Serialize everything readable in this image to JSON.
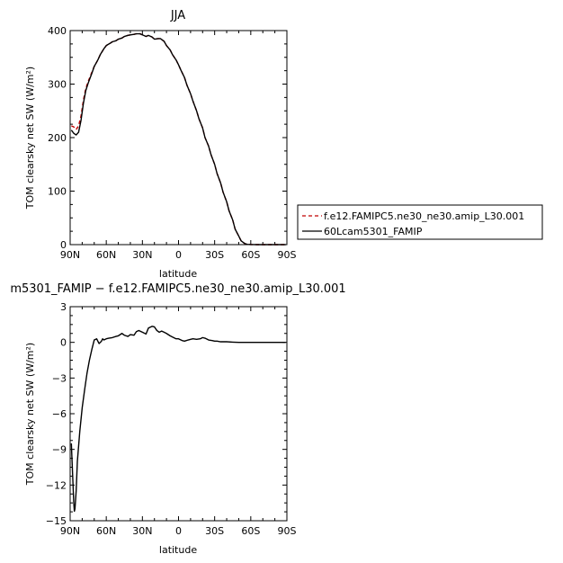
{
  "chart_data": [
    {
      "type": "line",
      "title": "JJA",
      "xlabel": "latitude",
      "ylabel": "TOM clearsky net SW (W/m²)",
      "xlim": [
        90,
        -90
      ],
      "ylim": [
        0,
        400
      ],
      "x_ticks": [
        90,
        60,
        30,
        0,
        -30,
        -60,
        -90
      ],
      "x_tick_labels": [
        "90N",
        "60N",
        "30N",
        "0",
        "30S",
        "60S",
        "90S"
      ],
      "y_ticks": [
        0,
        100,
        200,
        300,
        400
      ],
      "y_tick_labels": [
        "0",
        "100",
        "200",
        "300",
        "400"
      ],
      "legend": "outside-right",
      "series": [
        {
          "name": "f.e12.FAMIPC5.ne30_ne30.amip_L30.001",
          "color": "#c00000",
          "dash": "dashed",
          "x": [
            89,
            87,
            85,
            83,
            81,
            79,
            77,
            75,
            72,
            70,
            67,
            65,
            62,
            60,
            57,
            55,
            52,
            50,
            47,
            45,
            42,
            40,
            37,
            35,
            32,
            30,
            27,
            25,
            22,
            20,
            17,
            15,
            12,
            10,
            7,
            5,
            2,
            0,
            -2,
            -5,
            -7,
            -10,
            -12,
            -15,
            -17,
            -20,
            -22,
            -25,
            -27,
            -30,
            -32,
            -35,
            -37,
            -40,
            -42,
            -45,
            -47,
            -50,
            -52,
            -55,
            -57,
            -60,
            -62,
            -65,
            -67,
            -70,
            -72,
            -75,
            -77,
            -80,
            -82,
            -85,
            -87,
            -89
          ],
          "y": [
            222,
            220,
            215,
            222,
            240,
            270,
            292,
            305,
            322,
            333,
            345,
            355,
            366,
            372,
            376,
            379,
            381,
            384,
            386,
            389,
            391,
            392,
            393,
            394,
            394,
            392,
            389,
            391,
            388,
            384,
            385,
            385,
            380,
            372,
            364,
            355,
            345,
            336,
            326,
            312,
            298,
            282,
            268,
            250,
            235,
            218,
            200,
            184,
            168,
            150,
            133,
            115,
            98,
            80,
            63,
            46,
            29,
            16,
            7,
            2,
            0.5,
            0.2,
            0.1,
            0,
            0,
            0,
            0,
            0,
            0,
            0,
            0,
            0,
            0,
            0
          ]
        },
        {
          "name": "60Lcam5301_FAMIP",
          "color": "#000000",
          "dash": "solid",
          "x": [
            89,
            87,
            85,
            83,
            81,
            79,
            77,
            75,
            72,
            70,
            67,
            65,
            62,
            60,
            57,
            55,
            52,
            50,
            47,
            45,
            42,
            40,
            37,
            35,
            32,
            30,
            27,
            25,
            22,
            20,
            17,
            15,
            12,
            10,
            7,
            5,
            2,
            0,
            -2,
            -5,
            -7,
            -10,
            -12,
            -15,
            -17,
            -20,
            -22,
            -25,
            -27,
            -30,
            -32,
            -35,
            -37,
            -40,
            -42,
            -45,
            -47,
            -50,
            -52,
            -55,
            -57,
            -60,
            -62,
            -65,
            -67,
            -70,
            -72,
            -75,
            -77,
            -80,
            -82,
            -85,
            -87,
            -89
          ],
          "y": [
            214,
            208,
            205,
            210,
            232,
            264,
            288,
            302,
            320,
            333,
            345,
            355,
            366,
            372,
            376,
            379,
            381,
            384,
            386,
            389,
            391,
            392,
            393,
            394,
            394,
            392,
            389,
            391,
            388,
            384,
            385,
            385,
            380,
            372,
            364,
            355,
            345,
            336,
            326,
            312,
            298,
            282,
            268,
            250,
            235,
            218,
            200,
            184,
            168,
            150,
            133,
            115,
            98,
            80,
            63,
            46,
            29,
            16,
            7,
            2,
            0.5,
            0.2,
            0.1,
            0,
            0,
            0,
            0,
            0,
            0,
            0,
            0,
            0,
            0,
            0
          ]
        }
      ]
    },
    {
      "type": "line",
      "title": "m5301_FAMIP − f.e12.FAMIPC5.ne30_ne30.amip_L30.001",
      "xlabel": "latitude",
      "ylabel": "TOM clearsky net SW (W/m²)",
      "xlim": [
        90,
        -90
      ],
      "ylim": [
        -15,
        3
      ],
      "x_ticks": [
        90,
        60,
        30,
        0,
        -30,
        -60,
        -90
      ],
      "x_tick_labels": [
        "90N",
        "60N",
        "30N",
        "0",
        "30S",
        "60S",
        "90S"
      ],
      "y_ticks": [
        3,
        0,
        -3,
        -6,
        -9,
        -12,
        -15
      ],
      "y_tick_labels": [
        "3",
        "0",
        "−3",
        "−6",
        "−9",
        "−12",
        "−15"
      ],
      "series": [
        {
          "color": "#000000",
          "dash": "solid",
          "x": [
            89,
            88,
            87,
            86.5,
            86,
            85,
            84,
            82,
            80,
            78,
            76,
            74,
            72,
            70,
            68,
            66,
            64,
            63,
            62,
            60,
            58,
            55,
            52,
            50,
            47,
            45,
            42,
            40,
            37,
            35,
            33,
            30,
            27,
            25,
            22,
            20,
            18,
            16,
            14,
            12,
            10,
            7,
            5,
            2,
            0,
            -3,
            -5,
            -8,
            -10,
            -12,
            -15,
            -18,
            -20,
            -22,
            -25,
            -28,
            -30,
            -32,
            -35,
            -38,
            -40,
            -45,
            -50,
            -55,
            -60,
            -65,
            -70,
            -75,
            -80,
            -85,
            -89
          ],
          "y": [
            -8.5,
            -11,
            -13.5,
            -14.2,
            -14.0,
            -12.5,
            -10,
            -7.5,
            -5.5,
            -4.0,
            -2.6,
            -1.5,
            -0.6,
            0.2,
            0.3,
            -0.1,
            0.1,
            0.3,
            0.2,
            0.3,
            0.35,
            0.4,
            0.5,
            0.55,
            0.75,
            0.6,
            0.5,
            0.65,
            0.6,
            0.9,
            1.0,
            0.85,
            0.7,
            1.2,
            1.35,
            1.3,
            1.0,
            0.85,
            0.95,
            0.85,
            0.75,
            0.55,
            0.45,
            0.3,
            0.3,
            0.15,
            0.1,
            0.2,
            0.25,
            0.3,
            0.25,
            0.3,
            0.4,
            0.35,
            0.2,
            0.15,
            0.1,
            0.1,
            0.05,
            0.05,
            0.05,
            0.02,
            0.0,
            0.0,
            0.0,
            0.0,
            0.0,
            0.0,
            0.0,
            0.0,
            0.0
          ]
        }
      ]
    }
  ]
}
